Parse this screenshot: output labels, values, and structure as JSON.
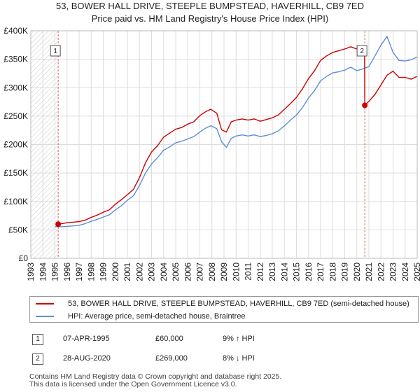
{
  "title_line1": "53, BOWER HALL DRIVE, STEEPLE BUMPSTEAD, HAVERHILL, CB9 7ED",
  "title_line2": "Price paid vs. HM Land Registry's House Price Index (HPI)",
  "chart_data": {
    "type": "line",
    "title": "53, BOWER HALL DRIVE, STEEPLE BUMPSTEAD, HAVERHILL, CB9 7ED",
    "subtitle": "Price paid vs. HM Land Registry's House Price Index (HPI)",
    "xlabel": "",
    "ylabel": "",
    "xlim": [
      1993,
      2025
    ],
    "ylim": [
      0,
      400000
    ],
    "y_ticks": [
      0,
      50000,
      100000,
      150000,
      200000,
      250000,
      300000,
      350000,
      400000
    ],
    "y_tick_labels": [
      "£0",
      "£50K",
      "£100K",
      "£150K",
      "£200K",
      "£250K",
      "£300K",
      "£350K",
      "£400K"
    ],
    "x_ticks": [
      1993,
      1994,
      1995,
      1996,
      1997,
      1998,
      1999,
      2000,
      2001,
      2002,
      2003,
      2004,
      2005,
      2006,
      2007,
      2008,
      2009,
      2010,
      2011,
      2012,
      2013,
      2014,
      2015,
      2016,
      2017,
      2018,
      2019,
      2020,
      2021,
      2022,
      2023,
      2024,
      2025
    ],
    "grid": true,
    "legend_position": "bottom",
    "colors": {
      "property": "#cc0000",
      "hpi": "#5b8fd6",
      "grid": "#dddddd",
      "hatch": "#d0d0d0",
      "vline": "#e06666"
    },
    "series": [
      {
        "name": "53, BOWER HALL DRIVE, STEEPLE BUMPSTEAD, HAVERHILL, CB9 7ED (semi-detached house)",
        "x": [
          1995.27,
          1995.6,
          1996.0,
          1996.5,
          1997.0,
          1997.5,
          1998.0,
          1998.5,
          1999.0,
          1999.5,
          2000.0,
          2000.5,
          2001.0,
          2001.5,
          2002.0,
          2002.5,
          2003.0,
          2003.5,
          2004.0,
          2004.5,
          2005.0,
          2005.5,
          2006.0,
          2006.5,
          2007.0,
          2007.5,
          2007.9,
          2008.4,
          2008.8,
          2009.2,
          2009.6,
          2010.0,
          2010.5,
          2011.0,
          2011.5,
          2012.0,
          2012.5,
          2013.0,
          2013.5,
          2014.0,
          2014.5,
          2015.0,
          2015.5,
          2016.0,
          2016.5,
          2017.0,
          2017.5,
          2018.0,
          2018.5,
          2019.0,
          2019.5,
          2020.0,
          2020.5,
          2020.64,
          2020.66,
          2021.0,
          2021.5,
          2022.0,
          2022.5,
          2023.0,
          2023.5,
          2024.0,
          2024.5,
          2025.0
        ],
        "values": [
          60000,
          61000,
          62500,
          63500,
          64500,
          67000,
          72000,
          76000,
          81000,
          85000,
          95000,
          103000,
          112000,
          121000,
          142000,
          168000,
          187000,
          198000,
          213000,
          220000,
          227000,
          230000,
          236000,
          240000,
          251000,
          258000,
          262000,
          255000,
          226000,
          222000,
          240000,
          243000,
          245000,
          243000,
          245000,
          241000,
          244000,
          247000,
          252000,
          262000,
          272000,
          283000,
          298000,
          316000,
          330000,
          348000,
          356000,
          362000,
          365000,
          368000,
          372000,
          368000,
          366000,
          369000,
          269000,
          276000,
          288000,
          305000,
          322000,
          329000,
          318000,
          318000,
          315000,
          320000
        ]
      },
      {
        "name": "HPI: Average price, semi-detached house, Braintree",
        "x": [
          1995.0,
          1995.5,
          1996.0,
          1996.5,
          1997.0,
          1997.5,
          1998.0,
          1998.5,
          1999.0,
          1999.5,
          2000.0,
          2000.5,
          2001.0,
          2001.5,
          2002.0,
          2002.5,
          2003.0,
          2003.5,
          2004.0,
          2004.5,
          2005.0,
          2005.5,
          2006.0,
          2006.5,
          2007.0,
          2007.5,
          2007.9,
          2008.4,
          2008.8,
          2009.2,
          2009.6,
          2010.0,
          2010.5,
          2011.0,
          2011.5,
          2012.0,
          2012.5,
          2013.0,
          2013.5,
          2014.0,
          2014.5,
          2015.0,
          2015.5,
          2016.0,
          2016.5,
          2017.0,
          2017.5,
          2018.0,
          2018.5,
          2019.0,
          2019.5,
          2020.0,
          2020.5,
          2021.0,
          2021.5,
          2022.0,
          2022.5,
          2023.0,
          2023.5,
          2024.0,
          2024.5,
          2025.0
        ],
        "values": [
          56000,
          55500,
          56000,
          57000,
          58000,
          61000,
          65000,
          68500,
          72500,
          76500,
          85000,
          92500,
          102000,
          110000,
          128000,
          150000,
          166000,
          177000,
          190000,
          196000,
          203000,
          206000,
          210000,
          214000,
          222000,
          229000,
          233000,
          228000,
          205000,
          195000,
          211000,
          215000,
          217000,
          215000,
          217000,
          214000,
          216000,
          219000,
          224000,
          233000,
          243000,
          252000,
          265000,
          282000,
          295000,
          312000,
          320000,
          326000,
          328000,
          331000,
          336000,
          330000,
          333000,
          337000,
          356000,
          375000,
          390000,
          362000,
          348000,
          347000,
          349000,
          354000
        ]
      }
    ],
    "annotations": [
      {
        "label": "1",
        "x": 1995.27,
        "value": 60000
      },
      {
        "label": "2",
        "x": 2020.66,
        "value": 269000
      }
    ]
  },
  "legend": {
    "property_label": "53, BOWER HALL DRIVE, STEEPLE BUMPSTEAD, HAVERHILL, CB9 7ED (semi-detached house)",
    "hpi_label": "HPI: Average price, semi-detached house, Braintree"
  },
  "transactions": [
    {
      "num": "1",
      "date": "07-APR-1995",
      "price": "£60,000",
      "hpi": "9% ↑ HPI"
    },
    {
      "num": "2",
      "date": "28-AUG-2020",
      "price": "£269,000",
      "hpi": "8% ↓ HPI"
    }
  ],
  "footer": {
    "line1": "Contains HM Land Registry data © Crown copyright and database right 2025.",
    "line2": "This data is licensed under the Open Government Licence v3.0."
  }
}
